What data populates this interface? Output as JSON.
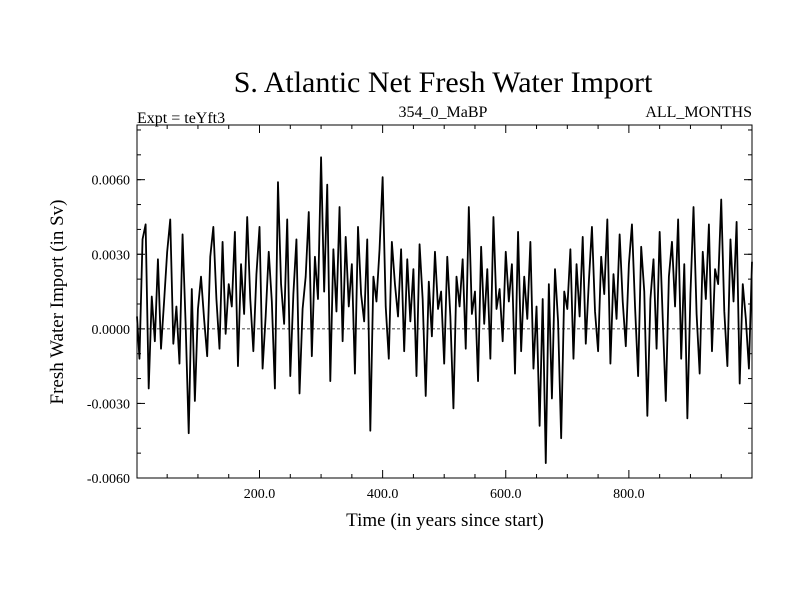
{
  "chart_data": {
    "type": "line",
    "title": "S. Atlantic Net Fresh Water Import",
    "subtitle_left": "Expt = teYft3",
    "subtitle_center": "354_0_MaBP",
    "subtitle_right": "ALL_MONTHS",
    "xlabel": "Time (in years since start)",
    "ylabel": "Fresh Water Import (in Sv)",
    "xlim": [
      1,
      1000
    ],
    "ylim": [
      -0.006,
      0.0082
    ],
    "xticks": [
      200,
      400,
      600,
      800
    ],
    "xtick_labels": [
      "200.0",
      "400.0",
      "600.0",
      "800.0"
    ],
    "yticks": [
      -0.006,
      -0.003,
      0.0,
      0.003,
      0.006
    ],
    "ytick_labels": [
      "-0.0060",
      "-0.0030",
      "0.0000",
      "0.0030",
      "0.0060"
    ],
    "zero_line": true,
    "grid": false,
    "series": [
      {
        "name": "S. Atlantic Net Fresh Water Import",
        "x": [
          1,
          5,
          10,
          15,
          20,
          25,
          30,
          35,
          40,
          45,
          50,
          55,
          60,
          65,
          70,
          75,
          80,
          85,
          90,
          95,
          100,
          105,
          110,
          115,
          120,
          125,
          130,
          135,
          140,
          145,
          150,
          155,
          160,
          165,
          170,
          175,
          180,
          185,
          190,
          195,
          200,
          205,
          210,
          215,
          220,
          225,
          230,
          235,
          240,
          245,
          250,
          255,
          260,
          265,
          270,
          275,
          280,
          285,
          290,
          295,
          300,
          305,
          310,
          315,
          320,
          325,
          330,
          335,
          340,
          345,
          350,
          355,
          360,
          365,
          370,
          375,
          380,
          385,
          390,
          395,
          400,
          405,
          410,
          415,
          420,
          425,
          430,
          435,
          440,
          445,
          450,
          455,
          460,
          465,
          470,
          475,
          480,
          485,
          490,
          495,
          500,
          505,
          510,
          515,
          520,
          525,
          530,
          535,
          540,
          545,
          550,
          555,
          560,
          565,
          570,
          575,
          580,
          585,
          590,
          595,
          600,
          605,
          610,
          615,
          620,
          625,
          630,
          635,
          640,
          645,
          650,
          655,
          660,
          665,
          670,
          675,
          680,
          685,
          690,
          695,
          700,
          705,
          710,
          715,
          720,
          725,
          730,
          735,
          740,
          745,
          750,
          755,
          760,
          765,
          770,
          775,
          780,
          785,
          790,
          795,
          800,
          805,
          810,
          815,
          820,
          825,
          830,
          835,
          840,
          845,
          850,
          855,
          860,
          865,
          870,
          875,
          880,
          885,
          890,
          895,
          900,
          905,
          910,
          915,
          920,
          925,
          930,
          935,
          940,
          945,
          950,
          955,
          960,
          965,
          970,
          975,
          980,
          985,
          990,
          995,
          1000
        ],
        "y": [
          0.0005,
          -0.0012,
          0.0036,
          0.0042,
          -0.0024,
          0.0013,
          -0.0005,
          0.0028,
          -0.0008,
          0.0011,
          0.0031,
          0.0044,
          -0.0006,
          0.0009,
          -0.0014,
          0.0038,
          0.0002,
          -0.0042,
          0.0016,
          -0.0029,
          0.0008,
          0.0021,
          0.0004,
          -0.0011,
          0.0029,
          0.0041,
          0.0012,
          -0.0008,
          0.0035,
          -0.0002,
          0.0018,
          0.0009,
          0.0039,
          -0.0015,
          0.0026,
          0.0006,
          0.0045,
          0.0012,
          -0.0009,
          0.0022,
          0.0041,
          -0.0016,
          0.0005,
          0.0031,
          0.0011,
          -0.0024,
          0.0059,
          0.0018,
          0.0002,
          0.0044,
          -0.0019,
          0.0014,
          0.0036,
          -0.0026,
          0.0008,
          0.0021,
          0.0047,
          -0.0011,
          0.0029,
          0.0012,
          0.0069,
          0.0015,
          0.0058,
          -0.0021,
          0.0032,
          0.0007,
          0.0049,
          -0.0005,
          0.0037,
          0.0009,
          0.0026,
          -0.0018,
          0.0041,
          0.0014,
          0.0003,
          0.0036,
          -0.0041,
          0.0021,
          0.0011,
          0.0032,
          0.0061,
          0.0009,
          -0.0012,
          0.0035,
          0.0018,
          0.0005,
          0.0032,
          -0.0009,
          0.0028,
          0.0003,
          0.0024,
          -0.0019,
          0.0034,
          0.0012,
          -0.0027,
          0.0019,
          -0.0003,
          0.0031,
          0.0008,
          0.0015,
          -0.0014,
          0.0029,
          0.0005,
          -0.0032,
          0.0021,
          0.0009,
          0.0028,
          -0.0008,
          0.0049,
          0.0006,
          0.0015,
          -0.0021,
          0.0033,
          0.0002,
          0.0024,
          -0.0012,
          0.0045,
          0.0008,
          0.0016,
          -0.0005,
          0.0031,
          0.0011,
          0.0026,
          -0.0018,
          0.0039,
          -0.0009,
          0.0021,
          0.0004,
          0.0035,
          -0.0016,
          0.0009,
          -0.0039,
          0.0012,
          -0.0054,
          0.0018,
          -0.0028,
          0.0024,
          0.0003,
          -0.0044,
          0.0015,
          0.0008,
          0.0032,
          -0.0012,
          0.0026,
          0.0005,
          0.0037,
          -0.0006,
          0.0019,
          0.0041,
          0.0007,
          -0.0009,
          0.0029,
          0.0014,
          0.0044,
          -0.0014,
          0.0022,
          0.0004,
          0.0038,
          0.0011,
          -0.0007,
          0.0026,
          0.0042,
          0.0009,
          -0.0019,
          0.0033,
          0.0015,
          -0.0035,
          0.0012,
          0.0028,
          -0.0008,
          0.0039,
          0.0004,
          -0.0029,
          0.0021,
          0.0035,
          0.0009,
          0.0044,
          -0.0012,
          0.0026,
          -0.0036,
          0.0014,
          0.0049,
          0.0006,
          -0.0018,
          0.0031,
          0.0012,
          0.0042,
          -0.0009,
          0.0024,
          0.0018,
          0.0052,
          0.0007,
          -0.0015,
          0.0036,
          0.0011,
          0.0043,
          -0.0022,
          0.0018,
          0.0004,
          -0.0016,
          0.0027
        ]
      }
    ]
  }
}
